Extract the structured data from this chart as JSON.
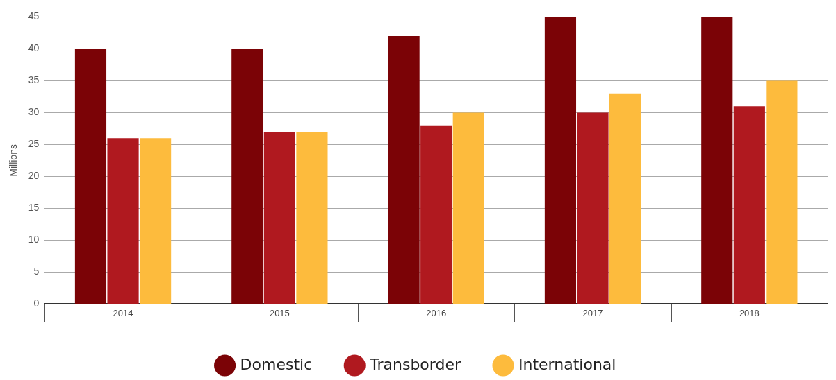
{
  "chart_data": {
    "type": "bar",
    "ylabel": "Millions",
    "categories": [
      "2014",
      "2015",
      "2016",
      "2017",
      "2018"
    ],
    "series": [
      {
        "name": "Domestic",
        "color": "#7b0306",
        "values": [
          40,
          40,
          42,
          45,
          45
        ]
      },
      {
        "name": "Transborder",
        "color": "#b0191f",
        "values": [
          26,
          27,
          28,
          30,
          31
        ]
      },
      {
        "name": "International",
        "color": "#fdbb3d",
        "values": [
          26,
          27,
          30,
          33,
          35
        ]
      }
    ],
    "ylim": [
      0,
      45
    ],
    "yticks": [
      0,
      5,
      10,
      15,
      20,
      25,
      30,
      35,
      40,
      45
    ],
    "grid": "y",
    "legend": "bottom"
  }
}
